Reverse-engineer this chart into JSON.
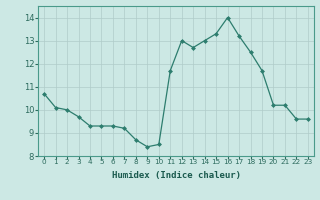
{
  "x": [
    0,
    1,
    2,
    3,
    4,
    5,
    6,
    7,
    8,
    9,
    10,
    11,
    12,
    13,
    14,
    15,
    16,
    17,
    18,
    19,
    20,
    21,
    22,
    23
  ],
  "y": [
    10.7,
    10.1,
    10.0,
    9.7,
    9.3,
    9.3,
    9.3,
    9.2,
    8.7,
    8.4,
    8.5,
    11.7,
    13.0,
    12.7,
    13.0,
    13.3,
    14.0,
    13.2,
    12.5,
    11.7,
    10.2,
    10.2,
    9.6,
    9.6
  ],
  "xlabel": "Humidex (Indice chaleur)",
  "xlim": [
    -0.5,
    23.5
  ],
  "ylim": [
    8,
    14.5
  ],
  "yticks": [
    8,
    9,
    10,
    11,
    12,
    13,
    14
  ],
  "xticks": [
    0,
    1,
    2,
    3,
    4,
    5,
    6,
    7,
    8,
    9,
    10,
    11,
    12,
    13,
    14,
    15,
    16,
    17,
    18,
    19,
    20,
    21,
    22,
    23
  ],
  "line_color": "#2d7d6e",
  "marker": "D",
  "marker_size": 2.5,
  "bg_color": "#cce8e4",
  "grid_color": "#b0ccc9",
  "spine_color": "#4a9a8a",
  "tick_color": "#2d6b5e",
  "label_color": "#1a5a4e"
}
